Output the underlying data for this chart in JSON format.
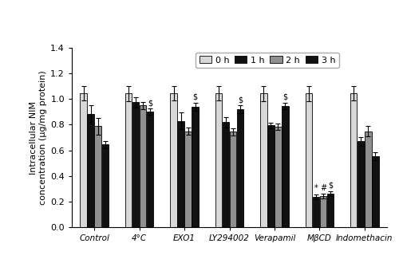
{
  "categories": [
    "Control",
    "4°C",
    "EXO1",
    "LY294002",
    "Verapamil",
    "MβCD",
    "Indomethacin"
  ],
  "time_labels": [
    "0 h",
    "1 h",
    "2 h",
    "3 h"
  ],
  "bar_colors": [
    "#d8d8d8",
    "#111111",
    "#909090",
    "#111111"
  ],
  "bar_edgecolor": "#000000",
  "values": [
    [
      1.045,
      0.885,
      0.79,
      0.645
    ],
    [
      1.045,
      0.975,
      0.95,
      0.9
    ],
    [
      1.045,
      0.83,
      0.75,
      0.94
    ],
    [
      1.045,
      0.82,
      0.745,
      0.92
    ],
    [
      1.045,
      0.795,
      0.785,
      0.945
    ],
    [
      1.045,
      0.235,
      0.24,
      0.26
    ],
    [
      1.045,
      0.67,
      0.748,
      0.555
    ]
  ],
  "errors": [
    [
      0.055,
      0.07,
      0.065,
      0.03
    ],
    [
      0.06,
      0.04,
      0.03,
      0.025
    ],
    [
      0.055,
      0.065,
      0.03,
      0.03
    ],
    [
      0.055,
      0.04,
      0.03,
      0.03
    ],
    [
      0.06,
      0.02,
      0.025,
      0.025
    ],
    [
      0.06,
      0.02,
      0.02,
      0.02
    ],
    [
      0.055,
      0.035,
      0.04,
      0.03
    ]
  ],
  "significance": {
    "1": [
      false,
      false,
      false,
      false,
      false,
      "*",
      false
    ],
    "2": [
      false,
      false,
      false,
      false,
      false,
      "#",
      false
    ],
    "3": [
      false,
      "$",
      "$",
      "$",
      "$",
      "$",
      false
    ]
  },
  "ylabel": "Intracellular NIM\nconcentration (μg/mg protein)",
  "ylim": [
    0.0,
    1.4
  ],
  "yticks": [
    0.0,
    0.2,
    0.4,
    0.6,
    0.8,
    1.0,
    1.2,
    1.4
  ],
  "bar_width": 0.16,
  "figsize": [
    5.0,
    3.35
  ],
  "dpi": 100
}
